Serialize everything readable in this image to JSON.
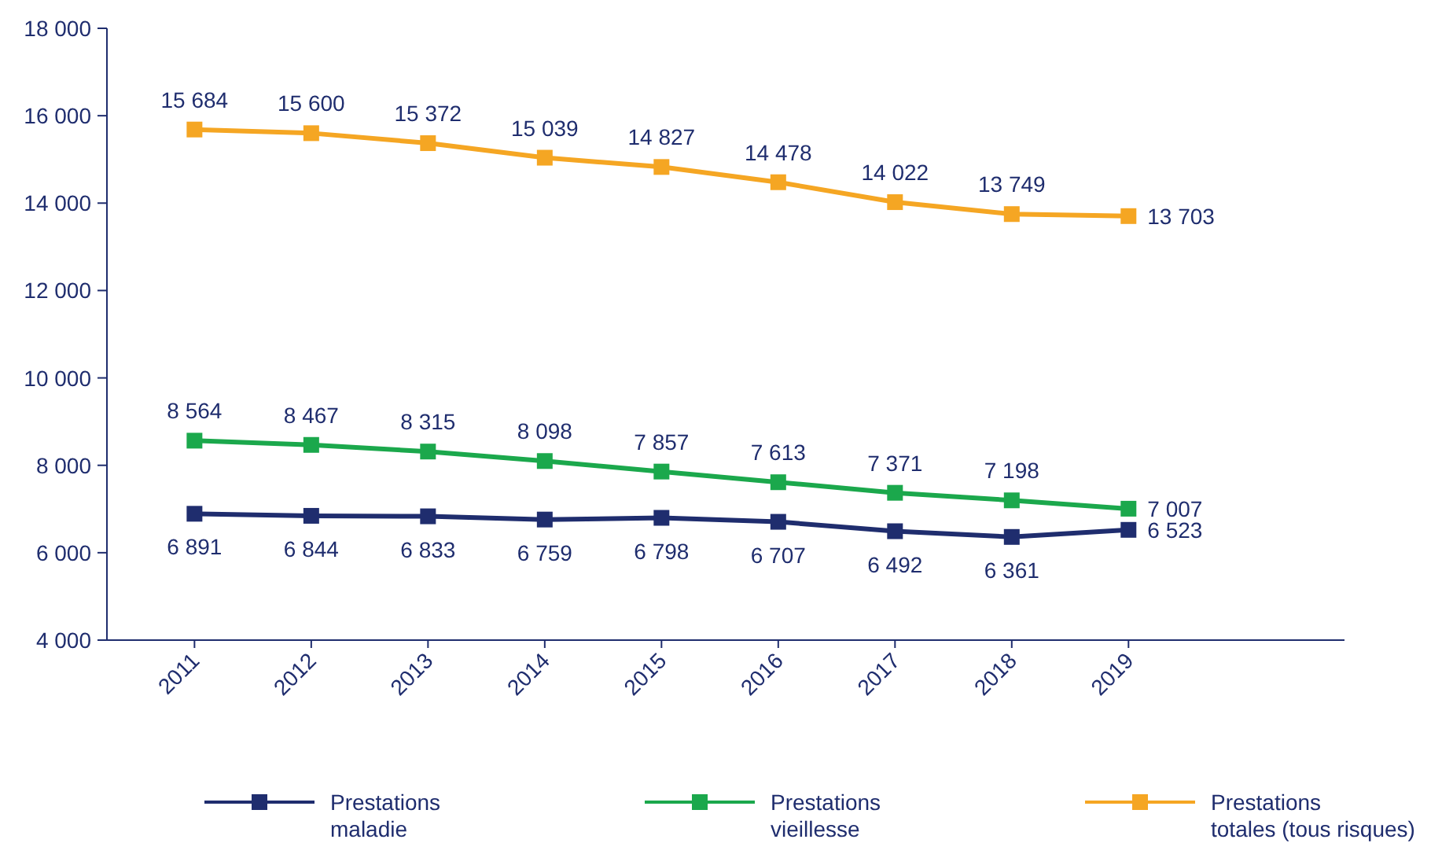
{
  "chart_data": {
    "type": "line",
    "categories": [
      "2011",
      "2012",
      "2013",
      "2014",
      "2015",
      "2016",
      "2017",
      "2018",
      "2019"
    ],
    "series": [
      {
        "name": "Prestations maladie",
        "color": "#1f2d6e",
        "values": [
          6891,
          6844,
          6833,
          6759,
          6798,
          6707,
          6492,
          6361,
          6523
        ]
      },
      {
        "name": "Prestations vieillesse",
        "color": "#1ba84c",
        "values": [
          8564,
          8467,
          8315,
          8098,
          7857,
          7613,
          7371,
          7198,
          7007
        ]
      },
      {
        "name": "Prestations totales (tous risques)",
        "color": "#f5a623",
        "values": [
          15684,
          15600,
          15372,
          15039,
          14827,
          14478,
          14022,
          13749,
          13703
        ]
      }
    ],
    "ylim": [
      4000,
      18000
    ],
    "yticks": [
      {
        "value": 4000,
        "label": "4 000"
      },
      {
        "value": 6000,
        "label": "6 000"
      },
      {
        "value": 8000,
        "label": "8 000"
      },
      {
        "value": 10000,
        "label": "10 000"
      },
      {
        "value": 12000,
        "label": "12 000"
      },
      {
        "value": 14000,
        "label": "14 000"
      },
      {
        "value": 16000,
        "label": "16 000"
      },
      {
        "value": 18000,
        "label": "18 000"
      }
    ],
    "data_labels": true,
    "marker": "square",
    "line_style": "solid",
    "legend": "bottom",
    "grid": false
  }
}
